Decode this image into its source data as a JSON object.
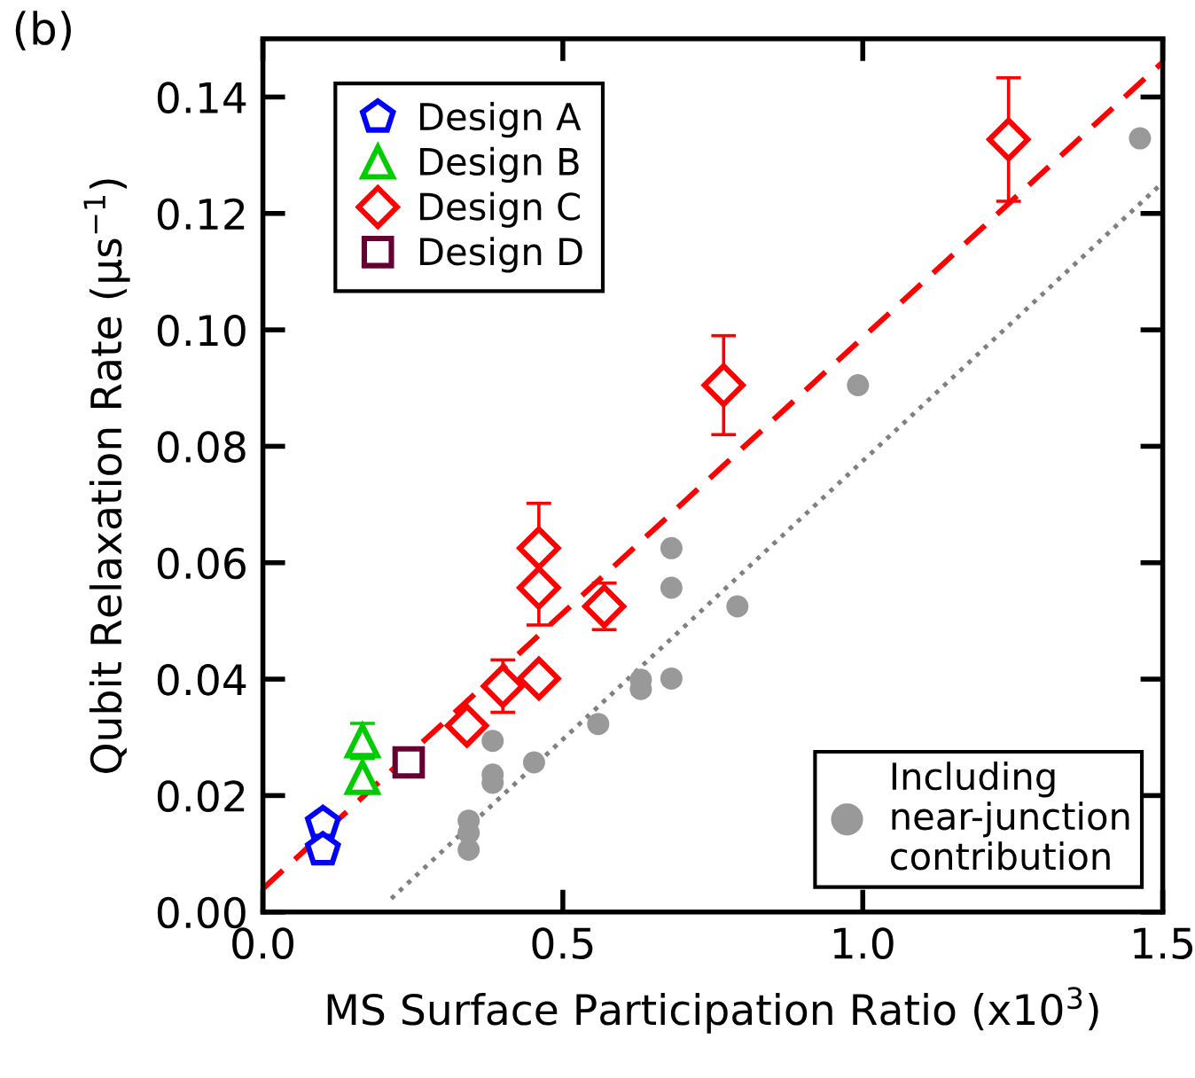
{
  "chart_data": {
    "type": "scatter",
    "title": "(b)",
    "xlabel": "MS Surface Participation Ratio (x10$^{3}$)",
    "ylabel": "Qubit Relaxation Rate (μs$^{−1}$)",
    "xlim": [
      0,
      1.5
    ],
    "ylim": [
      0,
      0.15
    ],
    "xticks": [
      {
        "value": 0,
        "label": "0.0"
      },
      {
        "value": 0.5,
        "label": "0.5"
      },
      {
        "value": 1.0,
        "label": "1.0"
      },
      {
        "value": 1.5,
        "label": "1.5"
      }
    ],
    "yticks": [
      {
        "value": 0,
        "label": "0.00"
      },
      {
        "value": 0.02,
        "label": "0.02"
      },
      {
        "value": 0.04,
        "label": "0.04"
      },
      {
        "value": 0.06,
        "label": "0.06"
      },
      {
        "value": 0.08,
        "label": "0.08"
      },
      {
        "value": 0.1,
        "label": "0.10"
      },
      {
        "value": 0.12,
        "label": "0.12"
      },
      {
        "value": 0.14,
        "label": "0.14"
      }
    ],
    "grid": false,
    "legend": "top left",
    "annotations": [
      "Including near-junction contribution"
    ],
    "series": [
      {
        "type": "line",
        "color": "#ff0000",
        "line_style": "dashed",
        "x": [
          0,
          1.5
        ],
        "values": [
          0.004,
          0.146
        ]
      },
      {
        "type": "line",
        "color": "#808080",
        "line_style": "dotted",
        "x": [
          0.214,
          1.5
        ],
        "values": [
          0.0023,
          0.1253
        ]
      },
      {
        "color": "#999999",
        "marker": "circle",
        "x": [
          0.343,
          0.343,
          0.343,
          0.383,
          0.383,
          0.383,
          0.452,
          0.559,
          0.63,
          0.63,
          0.681,
          0.681,
          0.681,
          0.791,
          0.992,
          1.462
        ],
        "values": [
          0.0157,
          0.0136,
          0.0107,
          0.0294,
          0.0236,
          0.0222,
          0.0257,
          0.0323,
          0.0399,
          0.0383,
          0.0401,
          0.0557,
          0.0625,
          0.0525,
          0.0905,
          0.1329
        ]
      },
      {
        "name": "Design A",
        "color": "#0000ff",
        "x": [
          0.1,
          0.1
        ],
        "values": [
          0.0152,
          0.0107
        ]
      },
      {
        "name": "Design B",
        "color": "#00cc00",
        "marker": "triangle",
        "x": [
          0.166,
          0.166
        ],
        "values": [
          0.0294,
          0.0231
        ],
        "errors": [
          0.003,
          null
        ]
      },
      {
        "name": "Design C",
        "color": "#ff0000",
        "marker": "diamond",
        "x": [
          0.34,
          0.4,
          0.46,
          0.46,
          0.46,
          0.569,
          0.768,
          1.243
        ],
        "values": [
          0.032,
          0.0388,
          0.0401,
          0.0557,
          0.0625,
          0.0525,
          0.0905,
          0.1327
        ],
        "errors": [
          null,
          0.0045,
          null,
          0.0064,
          0.0077,
          0.004,
          0.0085,
          0.0106
        ]
      },
      {
        "name": "Design D",
        "color": "#660033",
        "marker": "square",
        "x": [
          0.243
        ],
        "values": [
          0.0257
        ]
      }
    ]
  }
}
